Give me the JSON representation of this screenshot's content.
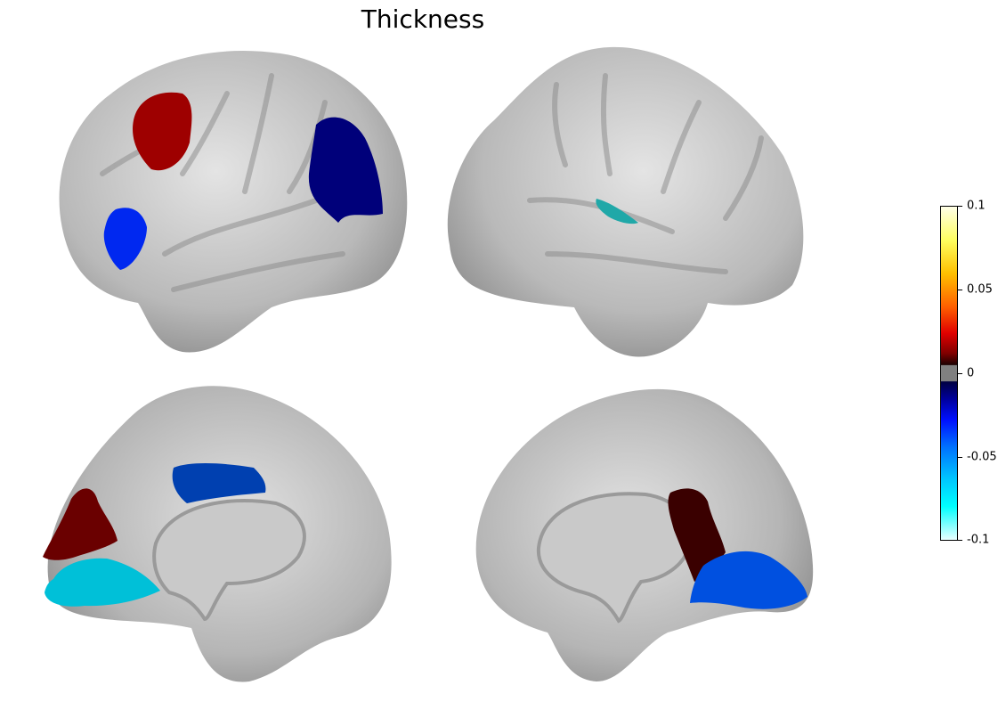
{
  "title": "Thickness",
  "colorbar": {
    "ticks": [
      "0.1",
      "0.05",
      "0",
      "-0.05",
      "-0.1"
    ],
    "range": [
      -0.1,
      0.1
    ],
    "colormap": "jet-like diverging with grey at 0"
  },
  "panels": [
    {
      "view": "lateral-left",
      "regions": [
        {
          "name": "superior-frontal-red",
          "color": "#9e0000",
          "value": 0.02
        },
        {
          "name": "precentral-blue",
          "color": "#0000b0",
          "value": -0.035
        },
        {
          "name": "inferior-frontal-blue",
          "color": "#0030ff",
          "value": -0.05
        }
      ]
    },
    {
      "view": "lateral-right",
      "regions": [
        {
          "name": "insula-teal",
          "color": "#20a8a8",
          "value": -0.07
        }
      ]
    },
    {
      "view": "medial-left",
      "regions": [
        {
          "name": "cingulate-blue",
          "color": "#0040b0",
          "value": -0.045
        },
        {
          "name": "cuneus-darkred",
          "color": "#6a0000",
          "value": 0.01
        },
        {
          "name": "lingual-cyan",
          "color": "#00c0d8",
          "value": -0.08
        }
      ]
    },
    {
      "view": "medial-right",
      "regions": [
        {
          "name": "precuneus-darkred",
          "color": "#3a0000",
          "value": 0.005
        },
        {
          "name": "lingual-blue",
          "color": "#0050e0",
          "value": -0.055
        }
      ]
    }
  ]
}
